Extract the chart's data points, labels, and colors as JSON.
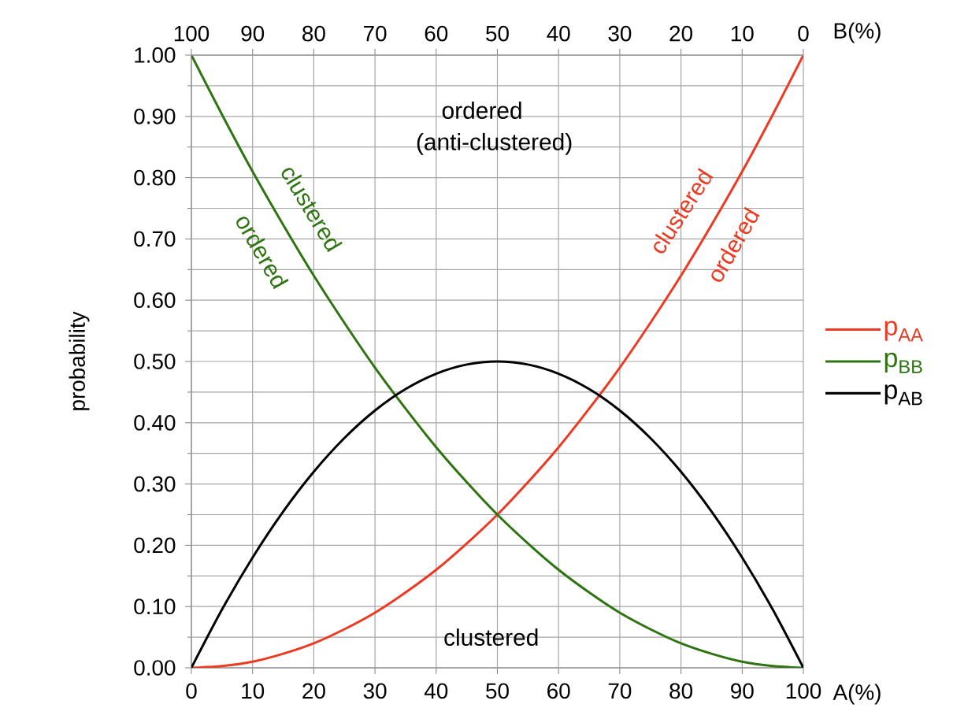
{
  "chart_data": {
    "type": "line",
    "xlabel": "A(%)",
    "x2label": "B(%)",
    "ylabel": "probability",
    "x": [
      0,
      5,
      10,
      15,
      20,
      25,
      30,
      35,
      40,
      45,
      50,
      55,
      60,
      65,
      70,
      75,
      80,
      85,
      90,
      95,
      100
    ],
    "series": [
      {
        "name": "p$_{AA}$",
        "color": "#ee3a22",
        "values": [
          0,
          0.003,
          0.01,
          0.023,
          0.04,
          0.063,
          0.09,
          0.123,
          0.16,
          0.203,
          0.25,
          0.303,
          0.36,
          0.423,
          0.49,
          0.563,
          0.64,
          0.723,
          0.81,
          0.903,
          1.0
        ]
      },
      {
        "name": "p$_{BB}$",
        "color": "#2e7512",
        "values": [
          1.0,
          0.903,
          0.81,
          0.723,
          0.64,
          0.563,
          0.49,
          0.423,
          0.36,
          0.303,
          0.25,
          0.203,
          0.16,
          0.123,
          0.09,
          0.063,
          0.04,
          0.023,
          0.01,
          0.003,
          0
        ]
      },
      {
        "name": "p$_{AB}$",
        "color": "#000000",
        "values": [
          0,
          0.095,
          0.18,
          0.255,
          0.32,
          0.375,
          0.42,
          0.455,
          0.48,
          0.495,
          0.5,
          0.495,
          0.48,
          0.455,
          0.42,
          0.375,
          0.32,
          0.255,
          0.18,
          0.095,
          0
        ]
      }
    ],
    "xlim": [
      0,
      100
    ],
    "xticks": [
      0,
      10,
      20,
      30,
      40,
      50,
      60,
      70,
      80,
      90,
      100
    ],
    "x2lim": [
      100,
      0
    ],
    "x2ticks": [
      100,
      90,
      80,
      70,
      60,
      50,
      40,
      30,
      20,
      10,
      0
    ],
    "ylim": [
      0,
      1
    ],
    "yticks": [
      {
        "value": 0,
        "label": "0.00"
      },
      {
        "value": 0.1,
        "label": "0.10"
      },
      {
        "value": 0.2,
        "label": "0.20"
      },
      {
        "value": 0.3,
        "label": "0.30"
      },
      {
        "value": 0.4,
        "label": "0.40"
      },
      {
        "value": 0.5,
        "label": "0.50"
      },
      {
        "value": 0.6,
        "label": "0.60"
      },
      {
        "value": 0.7,
        "label": "0.70"
      },
      {
        "value": 0.8,
        "label": "0.80"
      },
      {
        "value": 0.9,
        "label": "0.90"
      },
      {
        "value": 1.0,
        "label": "1.00"
      }
    ],
    "grid": true,
    "legend": "right",
    "annotations": [
      "ordered",
      "(anti-clustered)",
      "clustered",
      "clustered",
      "ordered",
      "clustered",
      "ordered"
    ]
  }
}
